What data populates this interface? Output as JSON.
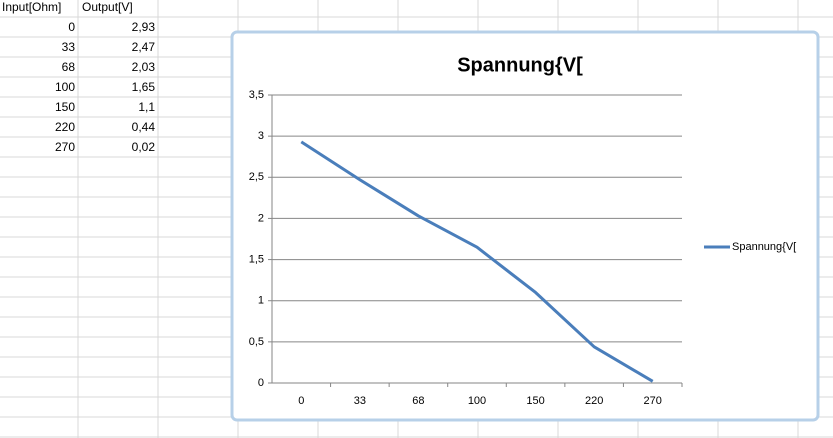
{
  "table": {
    "header": [
      "Input[Ohm]",
      "Output[V]"
    ],
    "rows": [
      [
        "0",
        "2,93"
      ],
      [
        "33",
        "2,47"
      ],
      [
        "68",
        "2,03"
      ],
      [
        "100",
        "1,65"
      ],
      [
        "150",
        "1,1"
      ],
      [
        "220",
        "0,44"
      ],
      [
        "270",
        "0,02"
      ]
    ]
  },
  "chart_data": {
    "type": "line",
    "title": "Spannung{V[",
    "categories": [
      "0",
      "33",
      "68",
      "100",
      "150",
      "220",
      "270"
    ],
    "series": [
      {
        "name": "Spannung{V[",
        "color": "#4a7ebb",
        "values": [
          2.93,
          2.47,
          2.03,
          1.65,
          1.1,
          0.44,
          0.02
        ]
      }
    ],
    "ylim": [
      0,
      3.5
    ],
    "yticks": [
      0,
      {
        "value": 0.5,
        "label": "0,5"
      },
      1,
      {
        "value": 1.5,
        "label": "1,5"
      },
      2,
      {
        "value": 2.5,
        "label": "2,5"
      },
      3,
      {
        "value": 3.5,
        "label": "3,5"
      }
    ],
    "grid": true,
    "legend": "right"
  }
}
